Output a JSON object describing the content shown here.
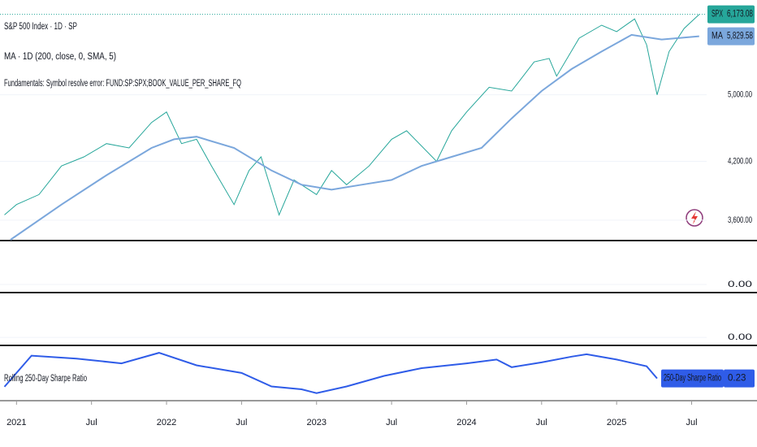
{
  "x_axis": {
    "xlim": [
      2020.89,
      2025.6
    ],
    "xticks": [
      {
        "value": 2021,
        "label": "2021"
      },
      {
        "value": 2021.5,
        "label": "Jul"
      },
      {
        "value": 2022,
        "label": "2022"
      },
      {
        "value": 2022.5,
        "label": "Jul"
      },
      {
        "value": 2023,
        "label": "2023"
      },
      {
        "value": 2023.5,
        "label": "Jul"
      },
      {
        "value": 2024,
        "label": "2024"
      },
      {
        "value": 2024.5,
        "label": "Jul"
      },
      {
        "value": 2025,
        "label": "2025"
      },
      {
        "value": 2025.5,
        "label": "Jul"
      }
    ]
  },
  "chart_data": [
    {
      "type": "line",
      "title": "S&P 500 Index · 1D · SP",
      "legend_texts": [
        "MA · 1D (200, close, 0, SMA, 5)",
        "Fundamentals: Symbol resolve error: FUND:SP:SPX;BOOK_VALUE_PER_SHARE_FQ"
      ],
      "log": true,
      "ylim": [
        3420,
        6410
      ],
      "yticks": [
        {
          "value": 3600,
          "label": "3,600.00"
        },
        {
          "value": 4200,
          "label": "4,200.00"
        },
        {
          "value": 5000,
          "label": "5,000.00"
        }
      ],
      "series": [
        {
          "name": "SPX",
          "color": "#26a69a",
          "x": [
            2020.92,
            2021.0,
            2021.15,
            2021.3,
            2021.45,
            2021.6,
            2021.75,
            2021.9,
            2022.0,
            2022.1,
            2022.2,
            2022.3,
            2022.45,
            2022.55,
            2022.63,
            2022.75,
            2022.85,
            2023.0,
            2023.1,
            2023.2,
            2023.35,
            2023.5,
            2023.6,
            2023.8,
            2023.9,
            2024.0,
            2024.15,
            2024.3,
            2024.45,
            2024.55,
            2024.6,
            2024.75,
            2024.9,
            2025.0,
            2025.12,
            2025.2,
            2025.27,
            2025.35,
            2025.45,
            2025.55
          ],
          "values": [
            3650,
            3750,
            3850,
            4150,
            4250,
            4400,
            4350,
            4650,
            4780,
            4400,
            4450,
            4150,
            3750,
            4100,
            4250,
            3650,
            4000,
            3850,
            4100,
            3950,
            4150,
            4450,
            4550,
            4200,
            4550,
            4780,
            5100,
            5050,
            5450,
            5500,
            5250,
            5800,
            6000,
            5900,
            6100,
            5700,
            5000,
            5600,
            5950,
            6173.08
          ],
          "last": {
            "value": 6173.08,
            "label": "6,173.08"
          }
        },
        {
          "name": "MA",
          "color": "#7ba7dc",
          "x": [
            2020.96,
            2021.3,
            2021.6,
            2021.9,
            2022.05,
            2022.2,
            2022.45,
            2022.7,
            2022.9,
            2023.1,
            2023.3,
            2023.5,
            2023.7,
            2023.9,
            2024.1,
            2024.3,
            2024.5,
            2024.7,
            2024.9,
            2025.1,
            2025.3,
            2025.55
          ],
          "values": [
            3420,
            3750,
            4050,
            4350,
            4450,
            4480,
            4350,
            4100,
            3950,
            3900,
            3950,
            4000,
            4150,
            4250,
            4350,
            4700,
            5050,
            5350,
            5600,
            5850,
            5780,
            5829.58
          ],
          "last": {
            "value": 5829.58,
            "label": "5,829.58"
          }
        }
      ]
    },
    {
      "type": "empty",
      "ylim": [
        -0.15,
        1
      ],
      "yticks": [
        {
          "value": 0,
          "label": "0.00"
        }
      ]
    },
    {
      "type": "empty",
      "ylim": [
        -0.15,
        1
      ],
      "yticks": [
        {
          "value": 0,
          "label": "0.00"
        }
      ]
    },
    {
      "type": "line",
      "title": "Rolling 250-Day Sharpe Ratio",
      "ylim": [
        -2,
        3.5
      ],
      "series": [
        {
          "name": "250-Day Sharpe Ratio",
          "color": "#2f5ce8",
          "x": [
            2020.92,
            2021.1,
            2021.4,
            2021.7,
            2021.95,
            2022.2,
            2022.5,
            2022.7,
            2022.9,
            2023.0,
            2023.2,
            2023.45,
            2023.7,
            2024.0,
            2024.2,
            2024.3,
            2024.5,
            2024.7,
            2024.8,
            2025.0,
            2025.2,
            2025.27
          ],
          "values": [
            -0.64,
            2.6,
            2.3,
            1.8,
            2.9,
            1.6,
            0.8,
            -0.6,
            -0.9,
            -1.3,
            -0.6,
            0.5,
            1.3,
            1.8,
            2.2,
            1.4,
            1.9,
            2.5,
            2.75,
            2.2,
            1.5,
            0.23
          ],
          "last": {
            "value": 0.23,
            "label": "0.23"
          }
        }
      ]
    }
  ]
}
